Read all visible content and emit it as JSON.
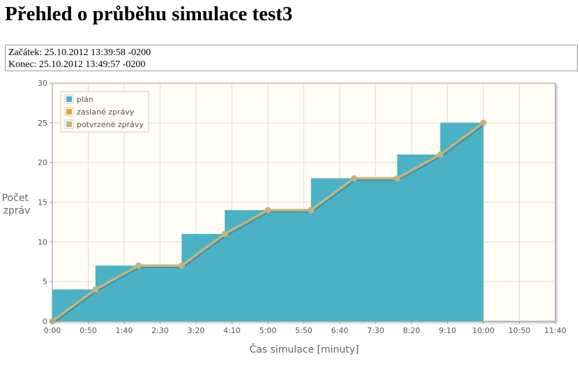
{
  "page": {
    "title": "Přehled o průběhu simulace test3",
    "start": "Začátek: 25.10.2012 13:39:58 -0200",
    "end": "Konec: 25.10.2012 13:49:57 -0200"
  },
  "chart_data": {
    "type": "area",
    "xlabel": "Čas simulace [minuty]",
    "ylabel": [
      "Počet",
      "zpráv"
    ],
    "x_unit": "seconds",
    "xlim": [
      0,
      700
    ],
    "ylim": [
      0,
      30
    ],
    "xticks": [
      {
        "value": 0,
        "label": "0:00"
      },
      {
        "value": 50,
        "label": "0:50"
      },
      {
        "value": 100,
        "label": "1:40"
      },
      {
        "value": 150,
        "label": "2:30"
      },
      {
        "value": 200,
        "label": "3:20"
      },
      {
        "value": 250,
        "label": "4:10"
      },
      {
        "value": 300,
        "label": "5:00"
      },
      {
        "value": 350,
        "label": "5:50"
      },
      {
        "value": 400,
        "label": "6:40"
      },
      {
        "value": 450,
        "label": "7:30"
      },
      {
        "value": 500,
        "label": "8:20"
      },
      {
        "value": 550,
        "label": "9:10"
      },
      {
        "value": 600,
        "label": "10:00"
      },
      {
        "value": 650,
        "label": "10:50"
      },
      {
        "value": 700,
        "label": "11:40"
      }
    ],
    "yticks": [
      0,
      5,
      10,
      15,
      20,
      25,
      30
    ],
    "grid": true,
    "legend_position": "top-left",
    "series": [
      {
        "name": "plán",
        "kind": "step-area",
        "color": "#4bb2c5",
        "x": [
          0,
          60,
          120,
          180,
          240,
          300,
          360,
          420,
          480,
          540,
          600
        ],
        "y": [
          4,
          7,
          7,
          11,
          14,
          14,
          18,
          18,
          21,
          25,
          25
        ]
      },
      {
        "name": "zaslané zprávy",
        "kind": "line",
        "color": "#eaa228",
        "x": [
          0,
          60,
          120,
          180,
          240,
          300,
          360,
          420,
          480,
          540,
          600
        ],
        "y": [
          0,
          4,
          7,
          7,
          11,
          14,
          14,
          18,
          18,
          21,
          25
        ]
      },
      {
        "name": "potvrzené zprávy",
        "kind": "line",
        "color": "#c5b47f",
        "x": [
          0,
          60,
          120,
          180,
          240,
          300,
          360,
          420,
          480,
          540,
          600
        ],
        "y": [
          0,
          4,
          7,
          7,
          11,
          14,
          14,
          18,
          18,
          21,
          25
        ]
      }
    ]
  }
}
